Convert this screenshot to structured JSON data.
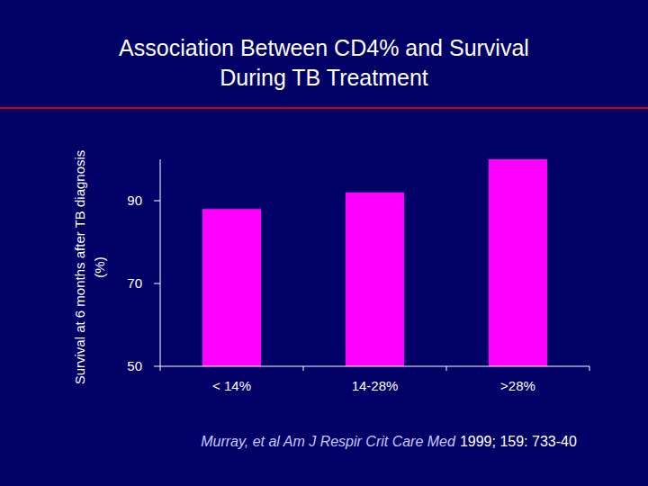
{
  "chart_data": {
    "type": "bar",
    "title": [
      "Association Between CD4% and Survival",
      "During TB Treatment"
    ],
    "y_label": [
      "Survival at 6 months after TB diagnosis",
      "(%)"
    ],
    "categories": [
      "< 14%",
      "14-28%",
      ">28%"
    ],
    "values": [
      88,
      92,
      100
    ],
    "color": "#ff00ff",
    "ylim": [
      50,
      100
    ],
    "yticks": [
      50,
      70,
      90
    ],
    "grid": false,
    "citation": {
      "source": "Murray, et al  Am J Respir Crit Care Med",
      "reference": "1999; 159: 733-40"
    }
  }
}
